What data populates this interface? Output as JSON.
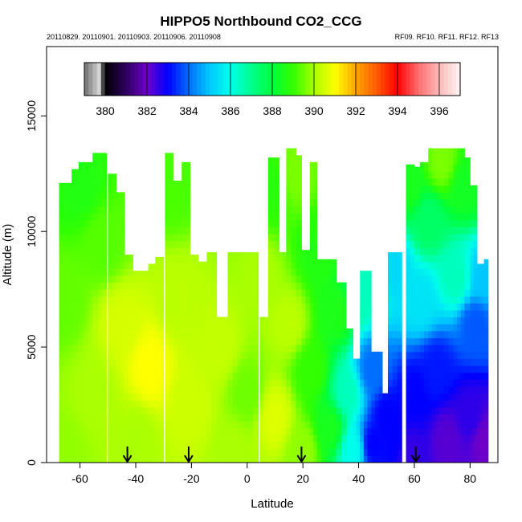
{
  "chart_data": {
    "type": "heatmap",
    "title": "HIPPO5 Northbound CO2_CCG",
    "subtitle_left": "20110829. 20110901. 20110903. 20110906. 20110908",
    "subtitle_right": "RF09. RF10. RF11. RF12. RF13",
    "xlabel": "Latitude",
    "ylabel": "Altitude (m)",
    "xlim": [
      -72,
      90
    ],
    "ylim": [
      0,
      18000
    ],
    "x_ticks": [
      "-60",
      "-40",
      "-20",
      "0",
      "20",
      "40",
      "60",
      "80"
    ],
    "x_tick_values": [
      -60,
      -40,
      -20,
      0,
      20,
      40,
      60,
      80
    ],
    "y_ticks": [
      "0",
      "5000",
      "10000",
      "15000"
    ],
    "y_tick_values": [
      0,
      5000,
      10000,
      15000
    ],
    "colorbar": {
      "range": [
        379,
        397
      ],
      "tick_labels": [
        "380",
        "382",
        "384",
        "386",
        "388",
        "390",
        "392",
        "394",
        "396"
      ],
      "tick_values": [
        380,
        382,
        384,
        386,
        388,
        390,
        392,
        394,
        396
      ]
    },
    "arrows_latitude": [
      -43,
      -21,
      19.5,
      60.5
    ],
    "columns": [
      {
        "x0": -67.5,
        "x1": -63,
        "top": 12100
      },
      {
        "x0": -63,
        "x1": -60.5,
        "top": 12700
      },
      {
        "x0": -60.5,
        "x1": -58,
        "top": 13000
      },
      {
        "x0": -58,
        "x1": -55.5,
        "top": 13000
      },
      {
        "x0": -55.5,
        "x1": -53.5,
        "top": 13400
      },
      {
        "x0": -53.5,
        "x1": -50.5,
        "top": 13400
      },
      {
        "x0": -50,
        "x1": -47,
        "top": 12500
      },
      {
        "x0": -47,
        "x1": -44,
        "top": 11700
      },
      {
        "x0": -44,
        "x1": -41,
        "top": 9000
      },
      {
        "x0": -41,
        "x1": -38,
        "top": 8300
      },
      {
        "x0": -38,
        "x1": -35.5,
        "top": 8300
      },
      {
        "x0": -35.5,
        "x1": -33,
        "top": 8600
      },
      {
        "x0": -33,
        "x1": -30,
        "top": 8900
      },
      {
        "x0": -29.5,
        "x1": -26.5,
        "top": 13400
      },
      {
        "x0": -26.5,
        "x1": -23.5,
        "top": 12200
      },
      {
        "x0": -23.5,
        "x1": -20.5,
        "top": 13000
      },
      {
        "x0": -20.5,
        "x1": -17.5,
        "top": 9000
      },
      {
        "x0": -17.5,
        "x1": -14.5,
        "top": 8700
      },
      {
        "x0": -14.5,
        "x1": -11,
        "top": 9100
      },
      {
        "x0": -11,
        "x1": -7,
        "top": 6300
      },
      {
        "x0": -7,
        "x1": -3.5,
        "top": 9100
      },
      {
        "x0": -3.5,
        "x1": 0.5,
        "top": 9100
      },
      {
        "x0": 0.5,
        "x1": 4,
        "top": 9100
      },
      {
        "x0": 4.5,
        "x1": 7.5,
        "top": 6300
      },
      {
        "x0": 7.5,
        "x1": 11.5,
        "top": 13200
      },
      {
        "x0": 11.5,
        "x1": 14,
        "top": 9100
      },
      {
        "x0": 14,
        "x1": 17.5,
        "top": 13600
      },
      {
        "x0": 17.5,
        "x1": 19.5,
        "top": 13300
      },
      {
        "x0": 19.5,
        "x1": 22.5,
        "top": 9200
      },
      {
        "x0": 22.5,
        "x1": 25,
        "top": 13000
      },
      {
        "x0": 25,
        "x1": 28,
        "top": 8800
      },
      {
        "x0": 28,
        "x1": 32,
        "top": 8800
      },
      {
        "x0": 32,
        "x1": 35.5,
        "top": 7800
      },
      {
        "x0": 35.5,
        "x1": 38,
        "top": 5800
      },
      {
        "x0": 38,
        "x1": 40.5,
        "top": 4500
      },
      {
        "x0": 40.5,
        "x1": 44.5,
        "top": 8300
      },
      {
        "x0": 44.5,
        "x1": 48.5,
        "top": 4800
      },
      {
        "x0": 48.5,
        "x1": 50.5,
        "top": 3000
      },
      {
        "x0": 50.5,
        "x1": 55.5,
        "top": 9100
      },
      {
        "x0": 57,
        "x1": 60,
        "top": 12900
      },
      {
        "x0": 60,
        "x1": 62,
        "top": 12800
      },
      {
        "x0": 62,
        "x1": 65,
        "top": 13000
      },
      {
        "x0": 65,
        "x1": 69,
        "top": 13600
      },
      {
        "x0": 69,
        "x1": 74,
        "top": 13600
      },
      {
        "x0": 74,
        "x1": 78,
        "top": 13600
      },
      {
        "x0": 78,
        "x1": 80,
        "top": 13200
      },
      {
        "x0": 80,
        "x1": 82.5,
        "top": 12000
      },
      {
        "x0": 82.5,
        "x1": 85,
        "top": 8600
      },
      {
        "x0": 85,
        "x1": 86.5,
        "top": 8800
      }
    ],
    "field_anchors": [
      {
        "lat": -66,
        "alt": 500,
        "v": 389.8
      },
      {
        "lat": -66,
        "alt": 7000,
        "v": 389.4
      },
      {
        "lat": -60,
        "alt": 12000,
        "v": 388.7
      },
      {
        "lat": -55,
        "alt": 3000,
        "v": 390.0
      },
      {
        "lat": -52,
        "alt": 9500,
        "v": 389.3
      },
      {
        "lat": -45,
        "alt": 6000,
        "v": 390.5
      },
      {
        "lat": -40,
        "alt": 1000,
        "v": 390.0
      },
      {
        "lat": -35,
        "alt": 4200,
        "v": 391.0
      },
      {
        "lat": -28,
        "alt": 12000,
        "v": 389.2
      },
      {
        "lat": -25,
        "alt": 7000,
        "v": 390.2
      },
      {
        "lat": -20,
        "alt": 2500,
        "v": 390.4
      },
      {
        "lat": -10,
        "alt": 5000,
        "v": 390.3
      },
      {
        "lat": -5,
        "alt": 500,
        "v": 390.0
      },
      {
        "lat": 0,
        "alt": 3000,
        "v": 389.5
      },
      {
        "lat": 5,
        "alt": 8000,
        "v": 390.0
      },
      {
        "lat": 9,
        "alt": 12000,
        "v": 388.8
      },
      {
        "lat": 10,
        "alt": 2000,
        "v": 390.6
      },
      {
        "lat": 15,
        "alt": 6000,
        "v": 390.2
      },
      {
        "lat": 17,
        "alt": 12500,
        "v": 389.6
      },
      {
        "lat": 20,
        "alt": 500,
        "v": 389.8
      },
      {
        "lat": 23,
        "alt": 4000,
        "v": 389.0
      },
      {
        "lat": 26,
        "alt": 9000,
        "v": 388.7
      },
      {
        "lat": 30,
        "alt": 1500,
        "v": 388.5
      },
      {
        "lat": 32,
        "alt": 6500,
        "v": 388.6
      },
      {
        "lat": 36,
        "alt": 3000,
        "v": 386.5
      },
      {
        "lat": 38,
        "alt": 600,
        "v": 386.0
      },
      {
        "lat": 42,
        "alt": 7500,
        "v": 386.5
      },
      {
        "lat": 45,
        "alt": 4000,
        "v": 384.0
      },
      {
        "lat": 45,
        "alt": 800,
        "v": 383.0
      },
      {
        "lat": 50,
        "alt": 2000,
        "v": 383.0
      },
      {
        "lat": 53,
        "alt": 1000,
        "v": 383.0
      },
      {
        "lat": 53,
        "alt": 8500,
        "v": 385.3
      },
      {
        "lat": 58,
        "alt": 500,
        "v": 382.5
      },
      {
        "lat": 58,
        "alt": 12000,
        "v": 388.5
      },
      {
        "lat": 60,
        "alt": 3000,
        "v": 383.0
      },
      {
        "lat": 62,
        "alt": 7000,
        "v": 385.5
      },
      {
        "lat": 65,
        "alt": 10500,
        "v": 387.5
      },
      {
        "lat": 68,
        "alt": 4000,
        "v": 383.2
      },
      {
        "lat": 70,
        "alt": 13000,
        "v": 389.6
      },
      {
        "lat": 72,
        "alt": 1000,
        "v": 382.2
      },
      {
        "lat": 75,
        "alt": 8000,
        "v": 386.5
      },
      {
        "lat": 78,
        "alt": 12000,
        "v": 388.4
      },
      {
        "lat": 80,
        "alt": 2000,
        "v": 382.6
      },
      {
        "lat": 82,
        "alt": 6000,
        "v": 383.8
      },
      {
        "lat": 85,
        "alt": 1000,
        "v": 382.0
      },
      {
        "lat": 85,
        "alt": 8000,
        "v": 385.0
      }
    ]
  }
}
